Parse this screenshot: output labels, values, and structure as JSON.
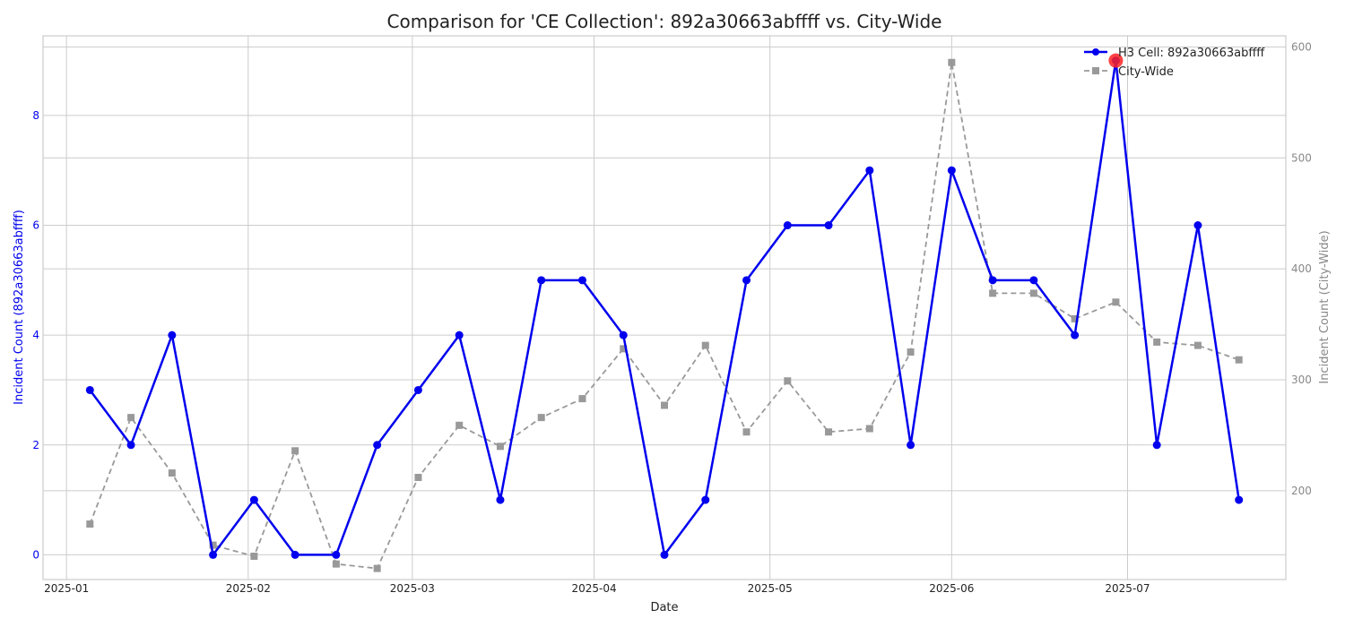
{
  "chart_data": {
    "type": "line",
    "title": "Comparison for 'CE Collection': 892a30663abffff vs. City-Wide",
    "xlabel": "Date",
    "ylabel_left": "Incident Count (892a30663abffff)",
    "ylabel_right": "Incident Count (City-Wide)",
    "x_tick_labels": [
      "2025-01",
      "2025-02",
      "2025-03",
      "2025-04",
      "2025-05",
      "2025-06",
      "2025-07"
    ],
    "x_tick_dates": [
      "2025-01-01",
      "2025-02-01",
      "2025-03-01",
      "2025-04-01",
      "2025-05-01",
      "2025-06-01",
      "2025-07-01"
    ],
    "xlim": [
      "2024-12-28",
      "2025-07-28"
    ],
    "ylim_left": [
      -0.45,
      9.45
    ],
    "ylim_right": [
      120,
      610
    ],
    "yticks_left": [
      0,
      2,
      4,
      6,
      8
    ],
    "yticks_right": [
      200,
      300,
      400,
      500,
      600
    ],
    "grid": true,
    "legend_position": "top-right",
    "x": [
      "2025-01-05",
      "2025-01-12",
      "2025-01-19",
      "2025-01-26",
      "2025-02-02",
      "2025-02-09",
      "2025-02-16",
      "2025-02-23",
      "2025-03-02",
      "2025-03-09",
      "2025-03-16",
      "2025-03-23",
      "2025-03-30",
      "2025-04-06",
      "2025-04-13",
      "2025-04-20",
      "2025-04-27",
      "2025-05-04",
      "2025-05-11",
      "2025-05-18",
      "2025-05-25",
      "2025-06-01",
      "2025-06-08",
      "2025-06-15",
      "2025-06-22",
      "2025-06-29",
      "2025-07-06",
      "2025-07-13",
      "2025-07-20"
    ],
    "series": [
      {
        "name": "H3 Cell: 892a30663abffff",
        "axis": "left",
        "color": "#0000ee",
        "style": "solid",
        "marker": "circle",
        "values": [
          3,
          2,
          4,
          0,
          1,
          0,
          0,
          2,
          3,
          4,
          1,
          5,
          5,
          4,
          0,
          1,
          5,
          6,
          6,
          7,
          2,
          7,
          5,
          5,
          4,
          9,
          2,
          6,
          1
        ]
      },
      {
        "name": "City-Wide",
        "axis": "right",
        "color": "#999999",
        "style": "dashed",
        "marker": "square",
        "values": [
          170,
          266,
          216,
          151,
          141,
          236,
          134,
          130,
          212,
          259,
          240,
          266,
          283,
          328,
          277,
          331,
          253,
          299,
          253,
          256,
          325,
          586,
          378,
          378,
          355,
          370,
          334,
          331,
          318
        ]
      }
    ],
    "highlight": {
      "series": 0,
      "index": 25,
      "color": "#ff2222"
    }
  }
}
